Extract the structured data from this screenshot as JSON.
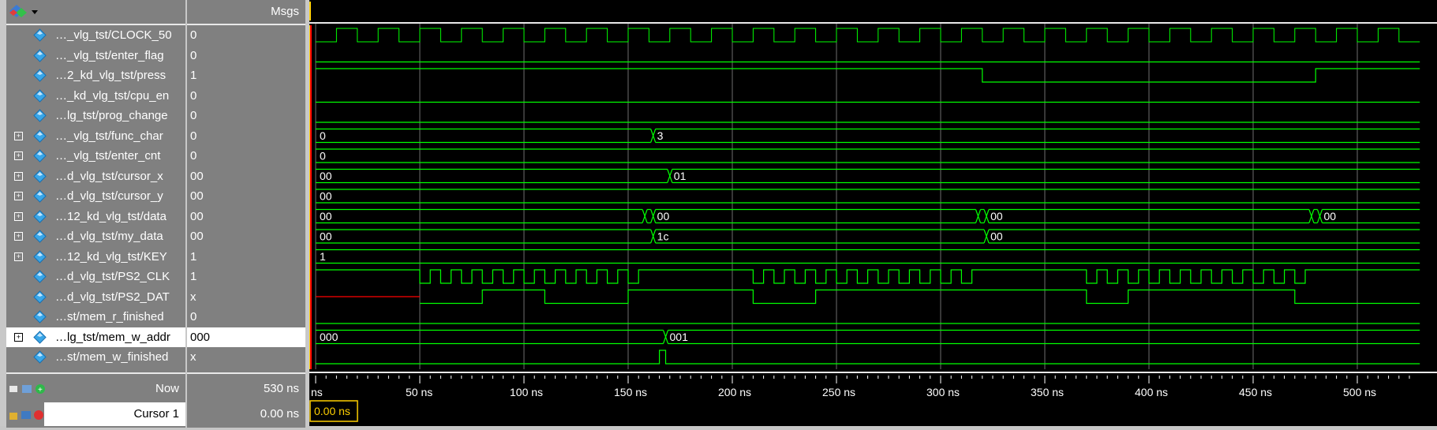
{
  "header": {
    "msgs_label": "Msgs"
  },
  "signals": [
    {
      "name": "…_vlg_tst/CLOCK_50",
      "value": "0",
      "expand": false
    },
    {
      "name": "…_vlg_tst/enter_flag",
      "value": "0",
      "expand": false
    },
    {
      "name": "…2_kd_vlg_tst/press",
      "value": "1",
      "expand": false
    },
    {
      "name": "…_kd_vlg_tst/cpu_en",
      "value": "0",
      "expand": false
    },
    {
      "name": "…lg_tst/prog_change",
      "value": "0",
      "expand": false
    },
    {
      "name": "…_vlg_tst/func_char",
      "value": "0",
      "expand": true
    },
    {
      "name": "…_vlg_tst/enter_cnt",
      "value": "0",
      "expand": true
    },
    {
      "name": "…d_vlg_tst/cursor_x",
      "value": "00",
      "expand": true
    },
    {
      "name": "…d_vlg_tst/cursor_y",
      "value": "00",
      "expand": true
    },
    {
      "name": "…12_kd_vlg_tst/data",
      "value": "00",
      "expand": true
    },
    {
      "name": "…d_vlg_tst/my_data",
      "value": "00",
      "expand": true
    },
    {
      "name": "…12_kd_vlg_tst/KEY",
      "value": "1",
      "expand": true
    },
    {
      "name": "…d_vlg_tst/PS2_CLK",
      "value": "1",
      "expand": false
    },
    {
      "name": "…d_vlg_tst/PS2_DAT",
      "value": "x",
      "expand": false
    },
    {
      "name": "…st/mem_r_finished",
      "value": "0",
      "expand": false
    },
    {
      "name": "…lg_tst/mem_w_addr",
      "value": "000",
      "expand": true,
      "selected": true
    },
    {
      "name": "…st/mem_w_finished",
      "value": "x",
      "expand": false
    }
  ],
  "footer": {
    "now_label": "Now",
    "now_value": "530 ns",
    "cursor_label": "Cursor 1",
    "cursor_value": "0.00 ns",
    "cursor_marker": "0.00 ns"
  },
  "bus_labels": {
    "func_char": [
      "0",
      "3"
    ],
    "enter_cnt": [
      "0"
    ],
    "cursor_x": [
      "00",
      "01"
    ],
    "cursor_y": [
      "00"
    ],
    "data": [
      "00",
      "00",
      "00",
      "00"
    ],
    "my_data": [
      "00",
      "1c",
      "00"
    ],
    "key": [
      "1"
    ],
    "mem_w_addr": [
      "000",
      "001"
    ]
  },
  "timeline": {
    "unit": "ns",
    "labels": [
      "ns",
      "50 ns",
      "100 ns",
      "150 ns",
      "200 ns",
      "250 ns",
      "300 ns",
      "350 ns",
      "400 ns",
      "450 ns",
      "500 ns"
    ]
  },
  "colors": {
    "wave": "#00ff00",
    "x_state": "#ff0000",
    "cursor": "#ffd000",
    "grid": "#6e6e6e"
  }
}
